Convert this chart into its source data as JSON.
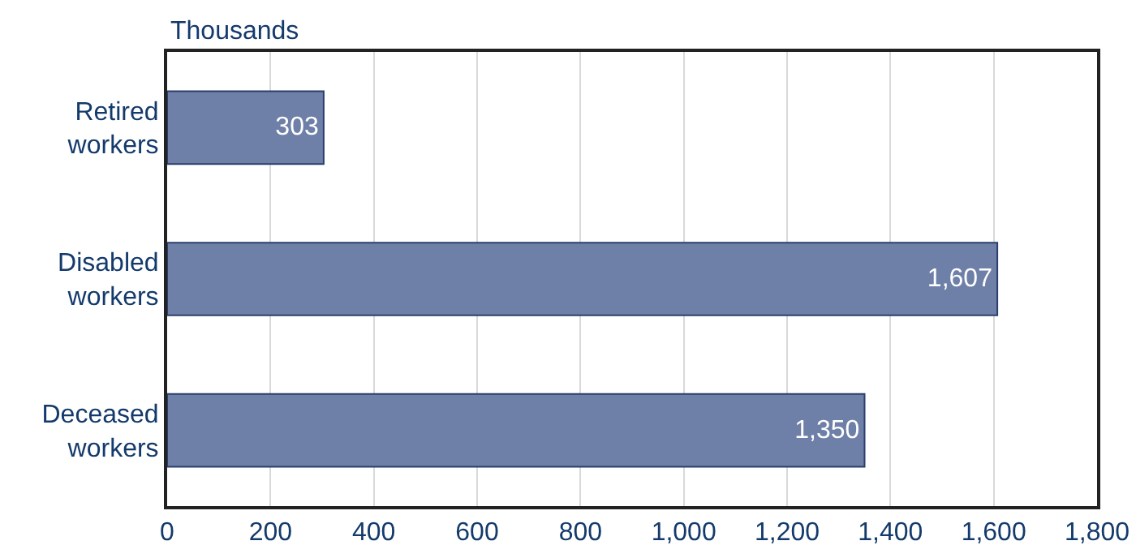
{
  "chart_data": {
    "type": "bar",
    "orientation": "horizontal",
    "xlabel": "Thousands",
    "categories": [
      "Retired workers",
      "Disabled workers",
      "Deceased workers"
    ],
    "values": [
      303,
      1607,
      1350
    ],
    "color": "#6e7fa8",
    "xlim": [
      0,
      1800
    ],
    "xticks": [
      0,
      200,
      400,
      600,
      800,
      {
        "value": 1000,
        "label": "1,000"
      },
      {
        "value": 1200,
        "label": "1,200"
      },
      {
        "value": 1400,
        "label": "1,400"
      },
      {
        "value": 1600,
        "label": "1,600"
      },
      {
        "value": 1800,
        "label": "1,800"
      }
    ],
    "value_labels": [
      "303",
      "1,607",
      "1,350"
    ],
    "grid": "x",
    "legend": false
  }
}
